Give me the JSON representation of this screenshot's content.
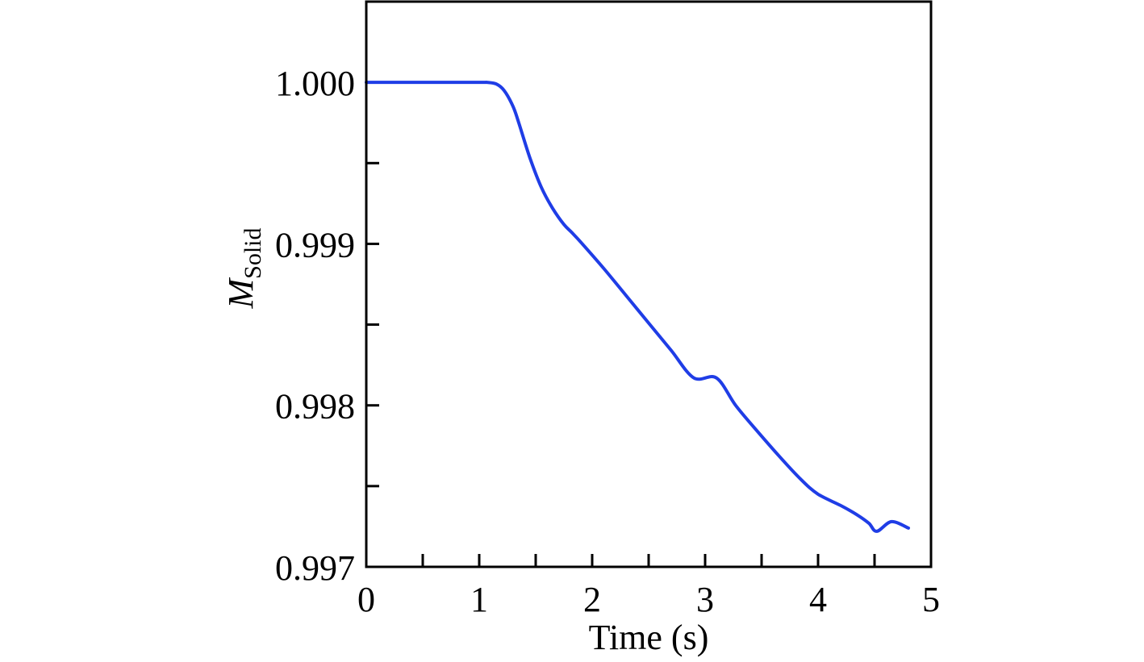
{
  "chart_data": {
    "type": "line",
    "xlabel": "Time (s)",
    "ylabel": {
      "main": "M",
      "subscript": "Solid"
    },
    "xlim": [
      0,
      5
    ],
    "ylim": [
      0.997,
      1.0005
    ],
    "x_ticks": [
      0,
      1,
      2,
      3,
      4,
      5
    ],
    "x_tick_labels": [
      "0",
      "1",
      "2",
      "3",
      "4",
      "5"
    ],
    "x_minor_ticks": [
      0.5,
      1.5,
      2.5,
      3.5,
      4.5
    ],
    "y_ticks": [
      0.997,
      0.998,
      0.999,
      1.0
    ],
    "y_tick_labels": [
      "0.997",
      "0.998",
      "0.999",
      "1.000"
    ],
    "y_minor_ticks": [
      0.9975,
      0.9985,
      0.9995
    ],
    "grid": false,
    "legend": "none",
    "series": [
      {
        "color": "#1f3de6",
        "x": [
          0,
          0.5,
          1.0,
          1.07,
          1.15,
          1.22,
          1.3,
          1.35,
          1.45,
          1.55,
          1.65,
          1.75,
          1.82,
          1.9,
          2.1,
          2.3,
          2.5,
          2.7,
          2.9,
          3.1,
          3.27,
          3.45,
          3.65,
          3.85,
          4.0,
          4.2,
          4.35,
          4.45,
          4.52,
          4.65,
          4.8
        ],
        "y": [
          1.0,
          1.0,
          1.0,
          1.0,
          0.99999,
          0.99995,
          0.99985,
          0.99975,
          0.99953,
          0.99935,
          0.99922,
          0.99912,
          0.99907,
          0.99901,
          0.99885,
          0.99868,
          0.99851,
          0.99834,
          0.99817,
          0.99817,
          0.998,
          0.99785,
          0.99769,
          0.99754,
          0.99745,
          0.99738,
          0.99732,
          0.99727,
          0.99722,
          0.99728,
          0.99724
        ]
      }
    ]
  }
}
